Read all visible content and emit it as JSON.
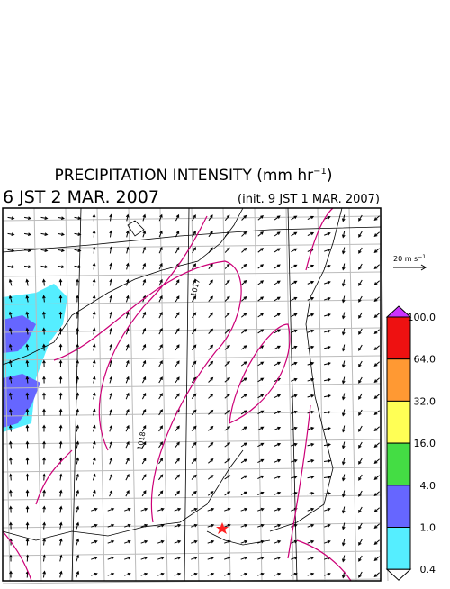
{
  "header": {
    "title": "PRECIPITATION INTENSITY (mm hr",
    "title_sup": "−1",
    "title_end": ")",
    "valid_time": "6 JST 2 MAR. 2007",
    "init_time": "(init. 9 JST 1 MAR. 2007)"
  },
  "vector_legend": {
    "label": "20 m s",
    "label_sup": "−1"
  },
  "isobar_labels": [
    "1017",
    "1018"
  ],
  "colorbar": {
    "labels": [
      "100.0",
      "64.0",
      "32.0",
      "16.0",
      "4.0",
      "1.0",
      "0.4"
    ],
    "colors": [
      "#cc33ff",
      "#ee1111",
      "#ff9933",
      "#ffff55",
      "#44dd44",
      "#6666ff",
      "#55eeff",
      "#ffffff"
    ]
  }
}
